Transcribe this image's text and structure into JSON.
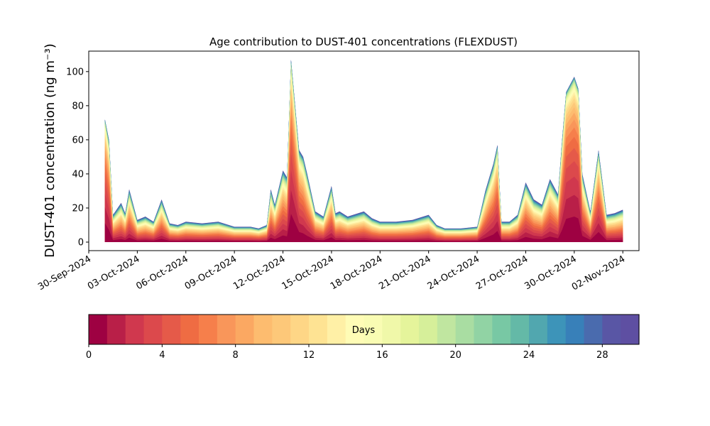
{
  "chart_data": {
    "type": "area",
    "title": "Age contribution to DUST-401 concentrations (FLEXDUST)",
    "ylabel": "DUST-401 concentration (ng m⁻³)",
    "xlabel": "",
    "ylim": [
      -5,
      112
    ],
    "yticks": [
      0,
      20,
      40,
      60,
      80,
      100
    ],
    "xlim": [
      "2024-09-30",
      "2024-11-03"
    ],
    "xticks": [
      "30-Sep-2024",
      "03-Oct-2024",
      "06-Oct-2024",
      "09-Oct-2024",
      "12-Oct-2024",
      "15-Oct-2024",
      "18-Oct-2024",
      "21-Oct-2024",
      "24-Oct-2024",
      "27-Oct-2024",
      "30-Oct-2024",
      "02-Nov-2024"
    ],
    "grid": false,
    "series_note": "stacked contributions by particle age bins 0-30 days",
    "total": {
      "x": [
        "2024-10-01",
        "2024-10-01 06:00",
        "2024-10-01 12:00",
        "2024-10-02",
        "2024-10-02 06:00",
        "2024-10-02 12:00",
        "2024-10-03",
        "2024-10-03 12:00",
        "2024-10-04",
        "2024-10-04 12:00",
        "2024-10-05",
        "2024-10-05 12:00",
        "2024-10-06",
        "2024-10-07",
        "2024-10-08",
        "2024-10-09",
        "2024-10-10",
        "2024-10-10 12:00",
        "2024-10-11",
        "2024-10-11 06:00",
        "2024-10-11 12:00",
        "2024-10-12",
        "2024-10-12 06:00",
        "2024-10-12 12:00",
        "2024-10-13",
        "2024-10-13 06:00",
        "2024-10-13 12:00",
        "2024-10-14",
        "2024-10-14 12:00",
        "2024-10-15",
        "2024-10-15 06:00",
        "2024-10-15 12:00",
        "2024-10-16",
        "2024-10-17",
        "2024-10-17 12:00",
        "2024-10-18",
        "2024-10-19",
        "2024-10-20",
        "2024-10-21",
        "2024-10-21 12:00",
        "2024-10-22",
        "2024-10-23",
        "2024-10-24",
        "2024-10-24 12:00",
        "2024-10-25",
        "2024-10-25 06:00",
        "2024-10-25 12:00",
        "2024-10-26",
        "2024-10-26 12:00",
        "2024-10-27",
        "2024-10-27 12:00",
        "2024-10-28",
        "2024-10-28 12:00",
        "2024-10-29",
        "2024-10-29 06:00",
        "2024-10-29 12:00",
        "2024-10-30",
        "2024-10-30 06:00",
        "2024-10-30 12:00",
        "2024-10-31",
        "2024-10-31 12:00",
        "2024-11-01",
        "2024-11-01 12:00",
        "2024-11-02"
      ],
      "y": [
        72,
        60,
        16,
        23,
        17,
        31,
        13,
        15,
        12,
        25,
        11,
        10,
        12,
        11,
        12,
        9,
        9,
        8,
        10,
        31,
        22,
        42,
        38,
        107,
        54,
        50,
        40,
        18,
        15,
        33,
        17,
        18,
        15,
        18,
        14,
        12,
        12,
        13,
        16,
        10,
        8,
        8,
        9,
        30,
        46,
        57,
        12,
        12,
        16,
        35,
        25,
        22,
        37,
        28,
        60,
        88,
        97,
        90,
        40,
        18,
        54,
        16,
        17,
        19
      ]
    }
  },
  "colorbar": {
    "label": "Days",
    "ticks": [
      "0",
      "4",
      "8",
      "12",
      "16",
      "20",
      "24",
      "28"
    ],
    "range": [
      0,
      30
    ],
    "bins": 30,
    "colors": [
      "#9e0142",
      "#b91f48",
      "#d0384e",
      "#dc494c",
      "#e55a49",
      "#ef6c43",
      "#f67f4b",
      "#f9965a",
      "#fba862",
      "#fdbc6f",
      "#fdc879",
      "#fed686",
      "#fee393",
      "#fff0a6",
      "#fffcb6",
      "#f9fcb3",
      "#f0f8a9",
      "#e5f49b",
      "#d6ef9a",
      "#c0e6a0",
      "#a9dda2",
      "#91d3a4",
      "#78c8a4",
      "#64b9a7",
      "#51a7af",
      "#3d94b9",
      "#3880b9",
      "#4a6bae",
      "#5956a5",
      "#5e4fa2"
    ]
  }
}
